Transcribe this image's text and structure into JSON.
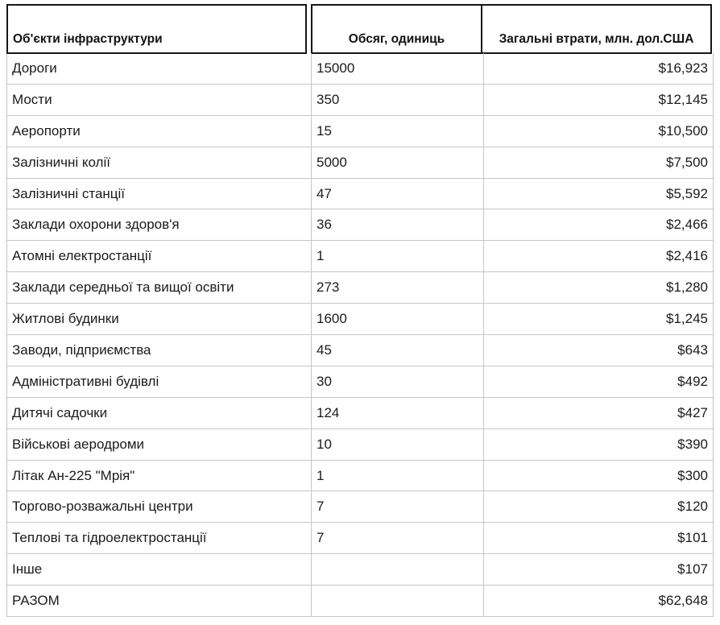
{
  "table": {
    "columns": [
      {
        "label": "Об'єкти інфраструктури"
      },
      {
        "label": "Обсяг, одиниць"
      },
      {
        "label": "Загальні втрати, млн. дол.США"
      }
    ],
    "rows": [
      {
        "name": "Дороги",
        "qty": "15000",
        "loss": "$16,923"
      },
      {
        "name": "Мости",
        "qty": "350",
        "loss": "$12,145"
      },
      {
        "name": "Аеропорти",
        "qty": "15",
        "loss": "$10,500"
      },
      {
        "name": "Залізничні колії",
        "qty": "5000",
        "loss": "$7,500"
      },
      {
        "name": "Залізничні станції",
        "qty": "47",
        "loss": "$5,592"
      },
      {
        "name": "Заклади охорони здоров'я",
        "qty": "36",
        "loss": "$2,466"
      },
      {
        "name": "Атомні електростанції",
        "qty": "1",
        "loss": "$2,416"
      },
      {
        "name": "Заклади середньої та вищої освіти",
        "qty": "273",
        "loss": "$1,280"
      },
      {
        "name": "Житлові будинки",
        "qty": "1600",
        "loss": "$1,245"
      },
      {
        "name": "Заводи, підприємства",
        "qty": "45",
        "loss": "$643"
      },
      {
        "name": "Адміністративні будівлі",
        "qty": "30",
        "loss": "$492"
      },
      {
        "name": "Дитячі садочки",
        "qty": "124",
        "loss": "$427"
      },
      {
        "name": "Військові аеродроми",
        "qty": "10",
        "loss": "$390"
      },
      {
        "name": "Літак Ан-225 \"Мрія\"",
        "qty": "1",
        "loss": "$300"
      },
      {
        "name": "Торгово-розважальні центри",
        "qty": "7",
        "loss": "$120"
      },
      {
        "name": "Теплові та гідроелектростанції",
        "qty": "7",
        "loss": "$101"
      },
      {
        "name": "Інше",
        "qty": "",
        "loss": "$107"
      },
      {
        "name": "РАЗОМ",
        "qty": "",
        "loss": "$62,648"
      }
    ]
  },
  "chart_data": {
    "type": "table",
    "title": "",
    "columns": [
      "Об'єкти інфраструктури",
      "Обсяг, одиниць",
      "Загальні втрати, млн. дол.США"
    ],
    "categories": [
      "Дороги",
      "Мости",
      "Аеропорти",
      "Залізничні колії",
      "Залізничні станції",
      "Заклади охорони здоров'я",
      "Атомні електростанції",
      "Заклади середньої та вищої освіти",
      "Житлові будинки",
      "Заводи, підприємства",
      "Адміністративні будівлі",
      "Дитячі садочки",
      "Військові аеродроми",
      "Літак Ан-225 \"Мрія\"",
      "Торгово-розважальні центри",
      "Теплові та гідроелектростанції",
      "Інше",
      "РАЗОМ"
    ],
    "series": [
      {
        "name": "Обсяг, одиниць",
        "values": [
          15000,
          350,
          15,
          5000,
          47,
          36,
          1,
          273,
          1600,
          45,
          30,
          124,
          10,
          1,
          7,
          7,
          null,
          null
        ]
      },
      {
        "name": "Загальні втрати, млн. дол.США",
        "values": [
          16923,
          12145,
          10500,
          7500,
          5592,
          2466,
          2416,
          1280,
          1245,
          643,
          492,
          427,
          390,
          300,
          120,
          101,
          107,
          62648
        ]
      }
    ],
    "colors": {
      "header_border": "#161616",
      "grid_border": "#c6c6c6",
      "text": "#1b1b1b",
      "background": "#ffffff"
    }
  }
}
